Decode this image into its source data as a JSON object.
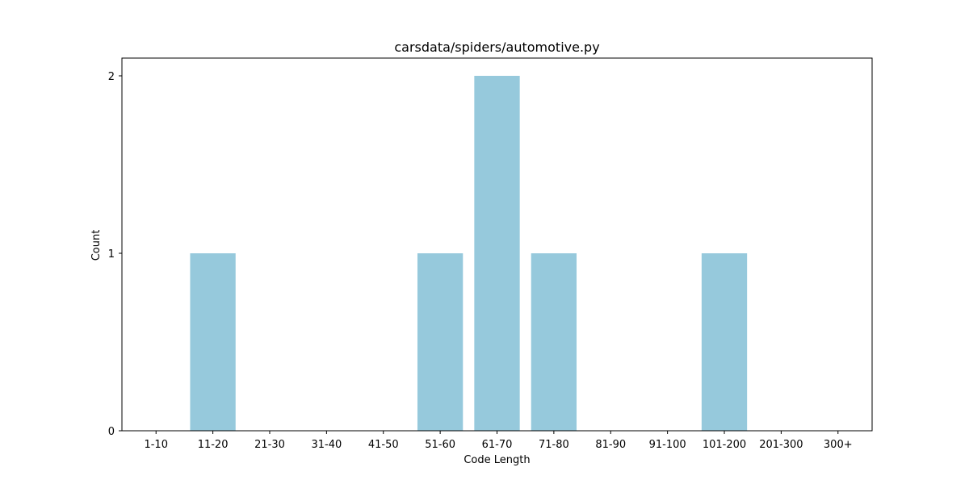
{
  "chart_data": {
    "type": "bar",
    "title": "carsdata/spiders/automotive.py",
    "xlabel": "Code Length",
    "ylabel": "Count",
    "categories": [
      "1-10",
      "11-20",
      "21-30",
      "31-40",
      "41-50",
      "51-60",
      "61-70",
      "71-80",
      "81-90",
      "91-100",
      "101-200",
      "201-300",
      "300+"
    ],
    "values": [
      0,
      1,
      0,
      0,
      0,
      1,
      2,
      1,
      0,
      0,
      1,
      0,
      0
    ],
    "yticks": [
      0,
      1,
      2
    ],
    "ylim": [
      0,
      2.1
    ],
    "grid": false,
    "bar_color": "#96c9dc"
  }
}
